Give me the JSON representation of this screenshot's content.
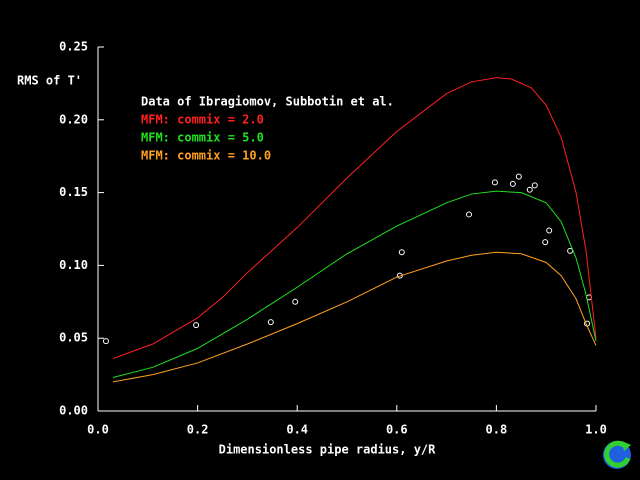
{
  "chart_data": {
    "type": "line",
    "ylabel": "RMS of T'",
    "xlabel": "Dimensionless pipe radius, y/R",
    "xlim": [
      0,
      1
    ],
    "ylim": [
      0,
      0.25
    ],
    "xticks": [
      {
        "value": 0,
        "label": "0.0"
      },
      0.2,
      0.4,
      0.6,
      0.8,
      {
        "value": 1,
        "label": "1.0"
      }
    ],
    "yticks": [
      {
        "value": 0,
        "label": "0.00"
      },
      0.05,
      {
        "value": 0.1,
        "label": "0.10"
      },
      0.15,
      {
        "value": 0.2,
        "label": "0.20"
      },
      0.25
    ],
    "series": [
      {
        "name": "Data of Ibragiomov, Subbotin et al.",
        "color": "#ffffff",
        "mode": "markers",
        "x": [
          0.016,
          0.197,
          0.347,
          0.396,
          0.61,
          0.606,
          0.745,
          0.797,
          0.833,
          0.845,
          0.867,
          0.877,
          0.906,
          0.898,
          0.948,
          0.986,
          0.982
        ],
        "values": [
          0.048,
          0.059,
          0.061,
          0.075,
          0.109,
          0.093,
          0.135,
          0.157,
          0.156,
          0.161,
          0.152,
          0.155,
          0.124,
          0.116,
          0.11,
          0.078,
          0.06
        ]
      },
      {
        "name": "MFM: commix = 2.0",
        "color": "#ff2020",
        "mode": "lines",
        "x": [
          0.03,
          0.11,
          0.2,
          0.25,
          0.3,
          0.4,
          0.5,
          0.6,
          0.7,
          0.75,
          0.8,
          0.83,
          0.87,
          0.9,
          0.93,
          0.96,
          0.98,
          0.99,
          1.0
        ],
        "values": [
          0.036,
          0.046,
          0.064,
          0.078,
          0.095,
          0.126,
          0.16,
          0.192,
          0.218,
          0.226,
          0.229,
          0.228,
          0.222,
          0.21,
          0.188,
          0.15,
          0.11,
          0.08,
          0.05
        ]
      },
      {
        "name": "MFM: commix = 5.0",
        "color": "#20e020",
        "mode": "lines",
        "x": [
          0.03,
          0.11,
          0.2,
          0.3,
          0.4,
          0.5,
          0.6,
          0.7,
          0.75,
          0.8,
          0.85,
          0.9,
          0.93,
          0.96,
          0.98,
          1.0
        ],
        "values": [
          0.023,
          0.03,
          0.043,
          0.063,
          0.085,
          0.108,
          0.127,
          0.143,
          0.149,
          0.151,
          0.15,
          0.143,
          0.13,
          0.105,
          0.08,
          0.048
        ]
      },
      {
        "name": "MFM: commix = 10.0",
        "color": "#ffa020",
        "mode": "lines",
        "x": [
          0.03,
          0.11,
          0.2,
          0.3,
          0.4,
          0.5,
          0.6,
          0.7,
          0.75,
          0.8,
          0.85,
          0.9,
          0.93,
          0.96,
          0.98,
          1.0
        ],
        "values": [
          0.02,
          0.025,
          0.033,
          0.046,
          0.06,
          0.075,
          0.092,
          0.103,
          0.107,
          0.109,
          0.108,
          0.102,
          0.093,
          0.077,
          0.06,
          0.045
        ]
      }
    ]
  }
}
